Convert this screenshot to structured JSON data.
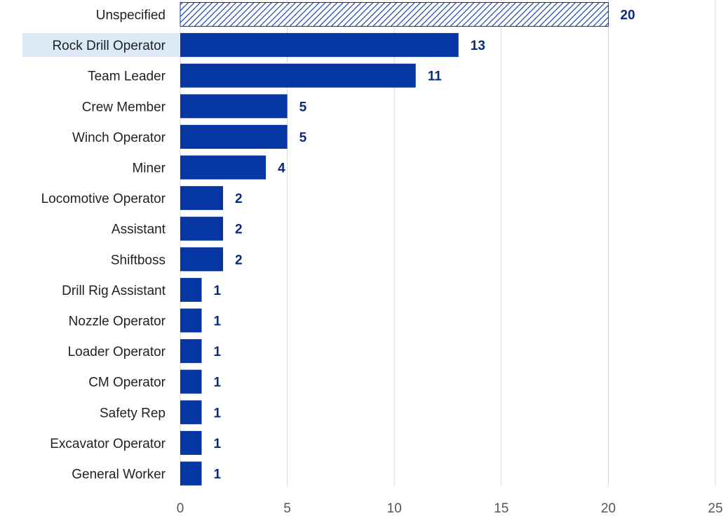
{
  "chart_data": {
    "type": "bar",
    "orientation": "horizontal",
    "title": "",
    "xlabel": "",
    "ylabel": "",
    "categories": [
      "Unspecified",
      "Rock Drill Operator",
      "Team Leader",
      "Crew Member",
      "Winch Operator",
      "Miner",
      "Locomotive Operator",
      "Assistant",
      "Shiftboss",
      "Drill Rig Assistant",
      "Nozzle Operator",
      "Loader Operator",
      "CM Operator",
      "Safety Rep",
      "Excavator Operator",
      "General Worker"
    ],
    "values": [
      20,
      13,
      11,
      5,
      5,
      4,
      2,
      2,
      2,
      1,
      1,
      1,
      1,
      1,
      1,
      1
    ],
    "xlim": [
      0,
      25
    ],
    "xticks": [
      0,
      5,
      10,
      15,
      20,
      25
    ],
    "grid": "vertical",
    "legend": "none",
    "highlighted_category": "Rock Drill Operator",
    "hatched_category": "Unspecified",
    "colors": {
      "bar": "#0636a1",
      "value_label": "#0b2a7a",
      "grid": "#d9d9d9",
      "highlight_bg": "#dce9f7",
      "hatch": "#0636a1"
    }
  }
}
